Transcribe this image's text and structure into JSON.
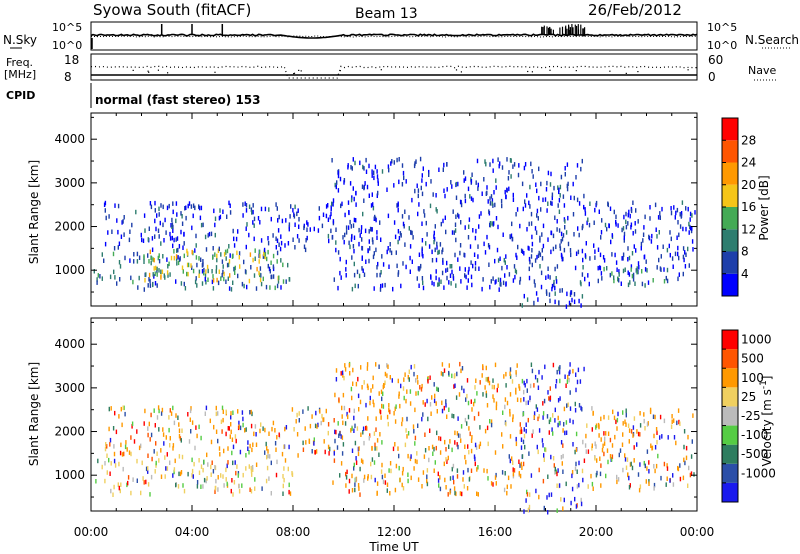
{
  "header": {
    "station": "Syowa South (fitACF)",
    "beam": "Beam 13",
    "date": "26/Feb/2012"
  },
  "status_panels": {
    "nsky_label": "N.Sky",
    "nsearch_label": "N.Search",
    "noise_ticks": [
      "10^5",
      "10^0"
    ],
    "freq_label": "Freq.",
    "freq_unit": "[MHz]",
    "freq_ticks": [
      "18",
      "8"
    ],
    "nave_label": "Nave",
    "nave_ticks": [
      "60",
      "0"
    ],
    "cpid_label": "CPID",
    "cpid_text": "normal (fast stereo) 153"
  },
  "x_axis": {
    "label": "Time UT",
    "ticks": [
      "00:00",
      "04:00",
      "08:00",
      "12:00",
      "16:00",
      "20:00",
      "00:00"
    ],
    "range_hours": [
      0,
      24
    ]
  },
  "chart_data": [
    {
      "type": "heatmap",
      "title": "",
      "xlabel": "Time UT",
      "ylabel": "Slant Range [km]",
      "xlim_hours": [
        0,
        24
      ],
      "ylim": [
        180,
        4600
      ],
      "yticks": [
        1000,
        2000,
        3000,
        4000
      ],
      "colorbar": {
        "label": "Power [dB]",
        "range": [
          0,
          32
        ],
        "ticks": [
          "4",
          "8",
          "12",
          "16",
          "20",
          "24",
          "28"
        ],
        "colors": [
          "#0000ff",
          "#1e3faa",
          "#2e7d6f",
          "#44aa55",
          "#f5c518",
          "#ff9900",
          "#ff5500",
          "#ff0000"
        ]
      },
      "bands": [
        {
          "x_start_hours": 0.1,
          "x_end_hours": 8.0,
          "range_min": 600,
          "range_max": 1500,
          "level": 2
        },
        {
          "x_start_hours": 2.0,
          "x_end_hours": 7.5,
          "range_min": 800,
          "range_max": 1500,
          "level": 4
        },
        {
          "x_start_hours": 0.5,
          "x_end_hours": 9.5,
          "range_min": 1500,
          "range_max": 2600,
          "level": 1
        },
        {
          "x_start_hours": 9.5,
          "x_end_hours": 17.0,
          "range_min": 600,
          "range_max": 3600,
          "level": 1
        },
        {
          "x_start_hours": 17.0,
          "x_end_hours": 19.5,
          "range_min": 200,
          "range_max": 3600,
          "level": 1
        },
        {
          "x_start_hours": 19.5,
          "x_end_hours": 23.9,
          "range_min": 700,
          "range_max": 2600,
          "level": 1
        },
        {
          "x_start_hours": 20.0,
          "x_end_hours": 23.0,
          "range_min": 700,
          "range_max": 1100,
          "level": 3
        }
      ]
    },
    {
      "type": "heatmap",
      "title": "",
      "xlabel": "Time UT",
      "ylabel": "Slant Range [km]",
      "xlim_hours": [
        0,
        24
      ],
      "ylim": [
        180,
        4600
      ],
      "yticks": [
        1000,
        2000,
        3000,
        4000
      ],
      "colorbar": {
        "label": "Velocity [m s^-1]",
        "range": [
          -1200,
          1200
        ],
        "ticks": [
          "1000",
          "500",
          "100",
          "25",
          "-25",
          "-100",
          "-500",
          "-1000"
        ],
        "colors": [
          "#1a1aee",
          "#2b4fa8",
          "#2e7d5f",
          "#55cc44",
          "#bbbbbb",
          "#f0d060",
          "#ff9900",
          "#ff5500",
          "#ff0000"
        ]
      },
      "bands": [
        {
          "x_start_hours": 0.1,
          "x_end_hours": 8.0,
          "range_min": 600,
          "range_max": 1500,
          "level": 5
        },
        {
          "x_start_hours": 0.5,
          "x_end_hours": 9.5,
          "range_min": 1500,
          "range_max": 2600,
          "level": 6
        },
        {
          "x_start_hours": 9.5,
          "x_end_hours": 17.0,
          "range_min": 600,
          "range_max": 3600,
          "level": 6
        },
        {
          "x_start_hours": 17.0,
          "x_end_hours": 19.5,
          "range_min": 200,
          "range_max": 3600,
          "level": 0
        },
        {
          "x_start_hours": 19.5,
          "x_end_hours": 23.9,
          "range_min": 700,
          "range_max": 2600,
          "level": 6
        }
      ]
    }
  ]
}
